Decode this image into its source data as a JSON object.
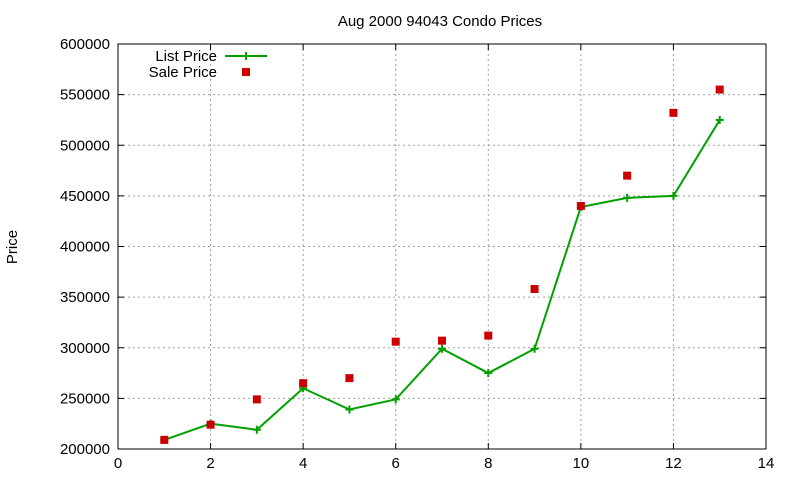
{
  "chart_data": {
    "type": "line",
    "title": "Aug 2000 94043 Condo Prices",
    "xlabel": "",
    "ylabel": "Price",
    "xlim": [
      0,
      14
    ],
    "ylim": [
      200000,
      600000
    ],
    "x_ticks": [
      0,
      2,
      4,
      6,
      8,
      10,
      12,
      14
    ],
    "y_ticks": [
      200000,
      250000,
      300000,
      350000,
      400000,
      450000,
      500000,
      550000,
      600000
    ],
    "grid": true,
    "legend_position": "top-left",
    "series": [
      {
        "name": "List Price",
        "style": "line-with-plus-markers",
        "color": "#00a000",
        "x": [
          1,
          2,
          3,
          4,
          5,
          6,
          7,
          8,
          9,
          10,
          11,
          12,
          13
        ],
        "y": [
          209000,
          225000,
          219000,
          260000,
          239000,
          249000,
          299000,
          275000,
          299000,
          439000,
          448000,
          450000,
          525000
        ]
      },
      {
        "name": "Sale Price",
        "style": "square-markers",
        "color": "#cc0000",
        "x": [
          1,
          2,
          3,
          4,
          5,
          6,
          7,
          8,
          9,
          10,
          11,
          12,
          13
        ],
        "y": [
          209000,
          224000,
          249000,
          265000,
          270000,
          306000,
          307000,
          312000,
          358000,
          440000,
          470000,
          532000,
          555000
        ]
      }
    ]
  }
}
